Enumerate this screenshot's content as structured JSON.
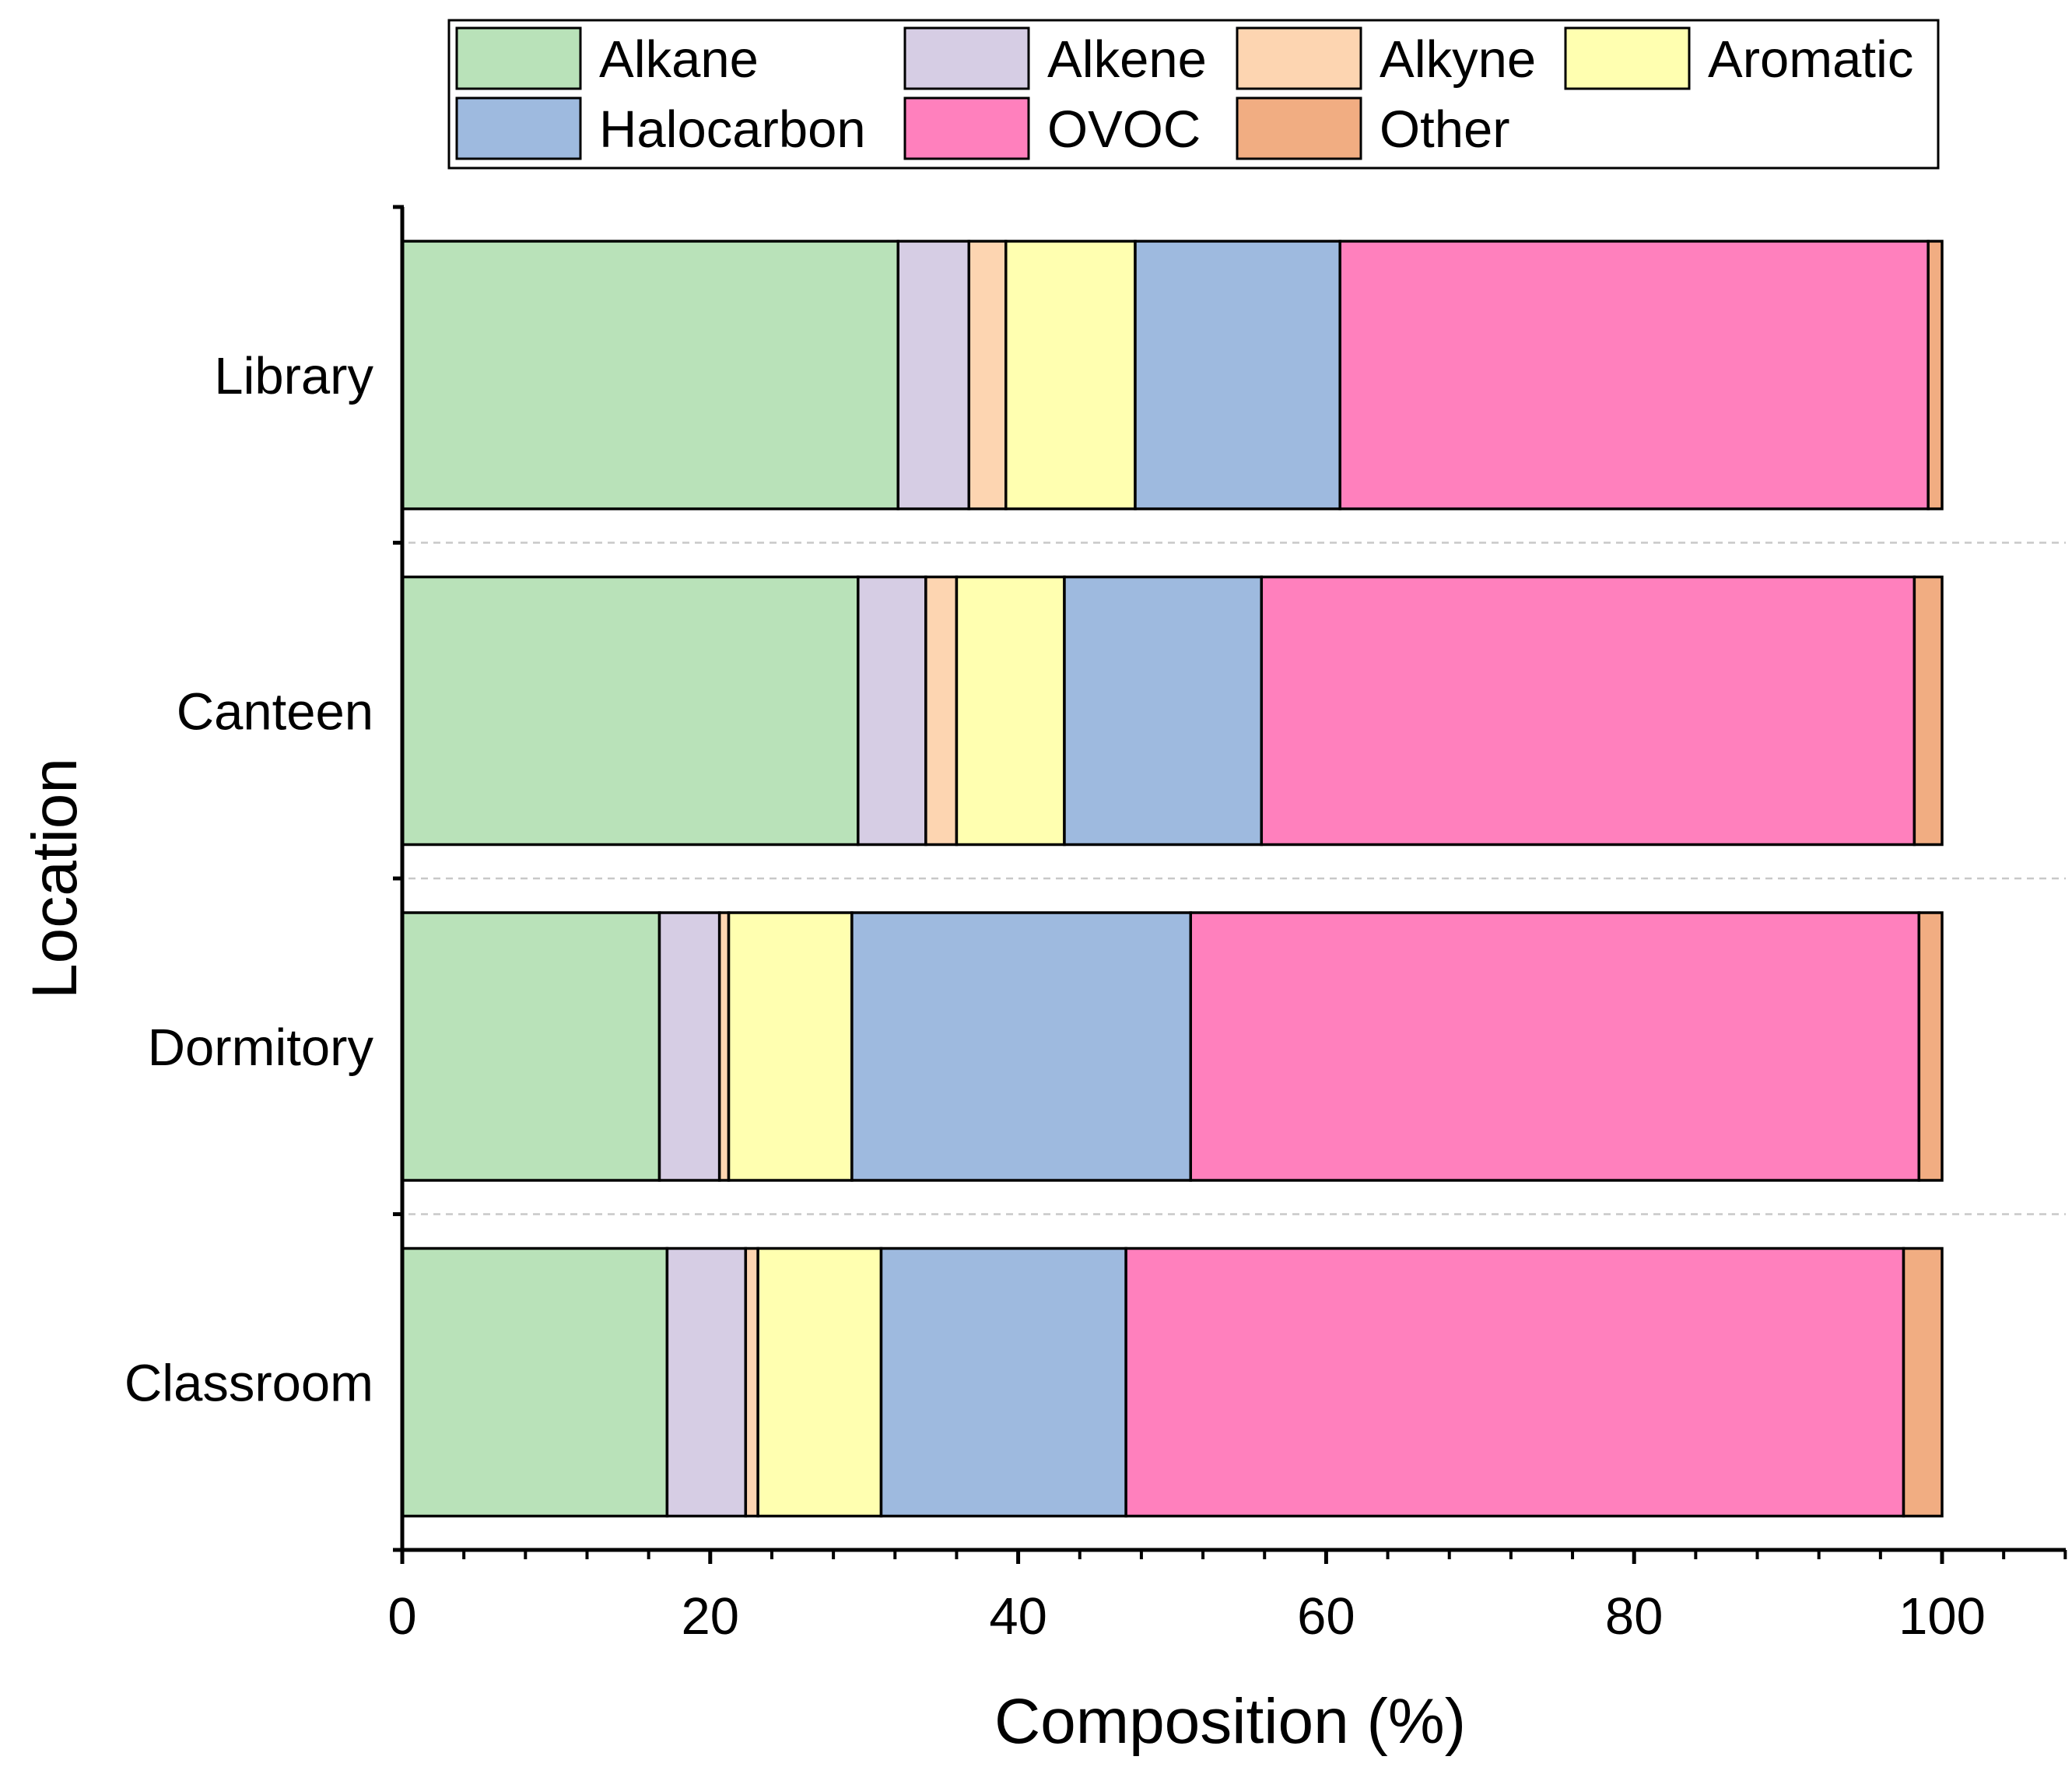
{
  "chart_data": {
    "type": "bar",
    "orientation": "horizontal",
    "stacked": true,
    "xlabel": "Composition (%)",
    "ylabel": "Location",
    "xlim": [
      0,
      108
    ],
    "xticks": [
      0,
      20,
      40,
      60,
      80,
      100
    ],
    "x_tick_labels": [
      "0",
      "20",
      "40",
      "60",
      "80",
      "100"
    ],
    "categories": [
      "Library",
      "Canteen",
      "Dormitory",
      "Classroom"
    ],
    "series": [
      {
        "name": "Alkane",
        "color": "#b9e2b9",
        "values": [
          32.2,
          29.6,
          16.7,
          17.2
        ]
      },
      {
        "name": "Alkene",
        "color": "#d6cde4",
        "values": [
          4.6,
          4.4,
          3.9,
          5.1
        ]
      },
      {
        "name": "Alkyne",
        "color": "#fdd5b1",
        "values": [
          2.4,
          2.0,
          0.6,
          0.8
        ]
      },
      {
        "name": "Aromatic",
        "color": "#ffffb0",
        "values": [
          8.4,
          7.0,
          8.0,
          8.0
        ]
      },
      {
        "name": "Halocarbon",
        "color": "#9ebadf",
        "values": [
          13.3,
          12.8,
          22.0,
          15.9
        ]
      },
      {
        "name": "OVOC",
        "color": "#ff80bd",
        "values": [
          38.2,
          42.4,
          47.3,
          50.5
        ]
      },
      {
        "name": "Other",
        "color": "#f1ad82",
        "values": [
          0.9,
          1.8,
          1.5,
          2.5
        ]
      }
    ],
    "legend_position": "top",
    "grid": false
  }
}
